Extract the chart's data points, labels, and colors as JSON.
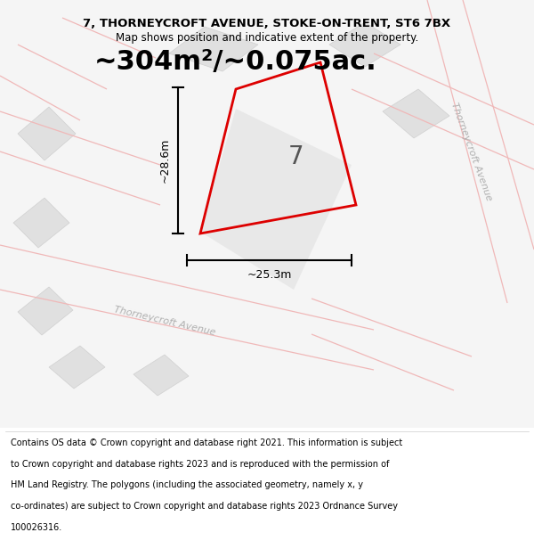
{
  "title_line1": "7, THORNEYCROFT AVENUE, STOKE-ON-TRENT, ST6 7BX",
  "title_line2": "Map shows position and indicative extent of the property.",
  "area_text": "~304m²/~0.075ac.",
  "plot_number": "7",
  "dim_width": "~25.3m",
  "dim_height": "~28.6m",
  "map_bg": "#f7f7f7",
  "plot_border": "#dd0000",
  "footnote_lines": [
    "Contains OS data © Crown copyright and database right 2021. This information is subject",
    "to Crown copyright and database rights 2023 and is reproduced with the permission of",
    "HM Land Registry. The polygons (including the associated geometry, namely x, y",
    "co-ordinates) are subject to Crown copyright and database rights 2023 Ordnance Survey",
    "100026316."
  ],
  "road_label_right": "Thorneycroft Avenue",
  "road_label_bottom": "Thorneycroft Avenue",
  "footnote_fontsize": 7.0,
  "title_fontsize": 9.5,
  "subtitle_fontsize": 8.5,
  "area_fontsize": 22,
  "plot_num_fontsize": 20,
  "dim_fontsize": 9,
  "road_label_fontsize": 8
}
